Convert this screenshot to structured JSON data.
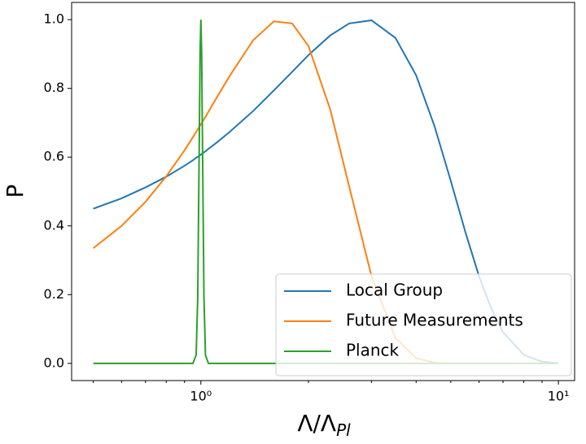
{
  "chart_data": {
    "type": "line",
    "xlabel": "Λ/Λ",
    "xlabel_subscript": "Pl",
    "ylabel": "P",
    "xscale": "log",
    "xlim": [
      0.435,
      11.1
    ],
    "ylim": [
      -0.05,
      1.05
    ],
    "xticks": [
      {
        "value": 1,
        "label": "10⁰"
      },
      {
        "value": 10,
        "label": "10¹"
      }
    ],
    "xminorticks": [
      0.5,
      0.6,
      0.7,
      0.8,
      0.9,
      2,
      3,
      4,
      5,
      6,
      7,
      8,
      9
    ],
    "yticks": [
      {
        "value": 0,
        "label": "0.0"
      },
      0.2,
      0.4,
      0.6,
      0.8,
      {
        "value": 1,
        "label": "1.0"
      }
    ],
    "legend": "lower right",
    "x": [
      0.5,
      0.6,
      0.7,
      0.8,
      0.9,
      0.95,
      0.97,
      0.98,
      0.99,
      0.995,
      1.0,
      1.005,
      1.01,
      1.02,
      1.03,
      1.05,
      1.1,
      1.2,
      1.4,
      1.6,
      1.8,
      2.0,
      2.3,
      2.6,
      3.0,
      3.5,
      4,
      4.5,
      5,
      5.5,
      6,
      6.5,
      7,
      8,
      9,
      10
    ],
    "series": [
      {
        "name": "Local Group",
        "color": "#1f77b4",
        "values": [
          0.45,
          0.48,
          0.512,
          0.543,
          0.575,
          0.591,
          0.598,
          0.601,
          0.604,
          0.606,
          0.607,
          0.609,
          0.611,
          0.614,
          0.617,
          0.624,
          0.64,
          0.672,
          0.734,
          0.794,
          0.848,
          0.897,
          0.954,
          0.989,
          0.998,
          0.947,
          0.838,
          0.691,
          0.531,
          0.38,
          0.253,
          0.158,
          0.091,
          0.025,
          0.005,
          0.001
        ]
      },
      {
        "name": "Future Measurements",
        "color": "#ff7f0e",
        "values": [
          0.335,
          0.4,
          0.47,
          0.544,
          0.62,
          0.658,
          0.673,
          0.681,
          0.688,
          0.692,
          0.695,
          0.699,
          0.703,
          0.71,
          0.717,
          0.732,
          0.768,
          0.834,
          0.94,
          0.995,
          0.989,
          0.923,
          0.739,
          0.514,
          0.254,
          0.074,
          0.015,
          0.002,
          0,
          0,
          0,
          0,
          0,
          0,
          0,
          0
        ]
      },
      {
        "name": "Planck",
        "color": "#2ca02c",
        "values": [
          0,
          0,
          0,
          0,
          0,
          0,
          0.024,
          0.192,
          0.662,
          0.902,
          1.0,
          0.902,
          0.662,
          0.192,
          0.024,
          0,
          0,
          0,
          0,
          0,
          0,
          0,
          0,
          0,
          0,
          0,
          0,
          0,
          0,
          0,
          0,
          0,
          0,
          0,
          0,
          0
        ]
      }
    ]
  }
}
